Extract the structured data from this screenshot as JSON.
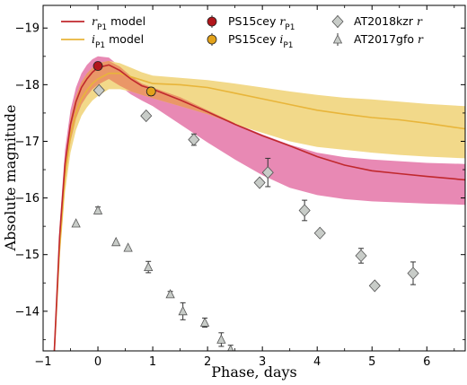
{
  "chart_data": {
    "type": "line",
    "title": "",
    "xlabel": "Phase, days",
    "ylabel": "Absolute magnitude",
    "xlim": [
      -1,
      6.7
    ],
    "ylim": [
      -13.3,
      -19.4
    ],
    "y_inverted": true,
    "xticks": [
      -1,
      0,
      1,
      2,
      3,
      4,
      5,
      6
    ],
    "yticks": [
      -14,
      -15,
      -16,
      -17,
      -18,
      -19
    ],
    "grid": false,
    "legend_placement": "top",
    "colors": {
      "r_model": "#c0282d",
      "r_band": "#e889b4",
      "i_model": "#e8b53a",
      "i_band": "#f2d98a",
      "overlap_band": "#e98f63",
      "ps15cey_r": "#b2161b",
      "ps15cey_i": "#e3a21a",
      "gray_marker": "#c8ccc8"
    },
    "series": [
      {
        "name": "r_P1 model",
        "kind": "model",
        "legend": {
          "main": "r",
          "sub": "P1",
          "suffix": " model"
        },
        "x": [
          -0.8,
          -0.7,
          -0.6,
          -0.5,
          -0.4,
          -0.3,
          -0.2,
          -0.1,
          0,
          0.2,
          0.4,
          0.6,
          0.8,
          1.0,
          1.5,
          2,
          2.5,
          3,
          3.5,
          4,
          4.5,
          5,
          5.5,
          6,
          6.7
        ],
        "y": [
          -13.2,
          -15.3,
          -16.6,
          -17.3,
          -17.7,
          -17.95,
          -18.1,
          -18.22,
          -18.3,
          -18.35,
          -18.25,
          -18.1,
          -17.98,
          -17.92,
          -17.73,
          -17.52,
          -17.3,
          -17.1,
          -16.92,
          -16.73,
          -16.58,
          -16.48,
          -16.43,
          -16.38,
          -16.32
        ],
        "band_upper": [
          -13.2,
          -15.5,
          -16.85,
          -17.55,
          -17.95,
          -18.2,
          -18.35,
          -18.45,
          -18.5,
          -18.48,
          -18.32,
          -18.15,
          -18.02,
          -17.95,
          -17.78,
          -17.55,
          -17.32,
          -17.12,
          -16.94,
          -16.8,
          -16.72,
          -16.68,
          -16.65,
          -16.62,
          -16.6
        ],
        "band_lower": [
          -13.2,
          -15.0,
          -16.3,
          -17.0,
          -17.4,
          -17.65,
          -17.8,
          -17.92,
          -18.0,
          -18.1,
          -17.98,
          -17.83,
          -17.72,
          -17.62,
          -17.3,
          -16.98,
          -16.68,
          -16.4,
          -16.18,
          -16.05,
          -15.98,
          -15.94,
          -15.92,
          -15.9,
          -15.88
        ]
      },
      {
        "name": "i_P1 model",
        "kind": "model",
        "legend": {
          "main": "i",
          "sub": "P1",
          "suffix": " model"
        },
        "x": [
          -0.8,
          -0.7,
          -0.6,
          -0.5,
          -0.4,
          -0.3,
          -0.2,
          -0.1,
          0,
          0.2,
          0.4,
          0.6,
          0.8,
          1.0,
          1.5,
          2,
          2.5,
          3,
          3.5,
          4,
          4.5,
          5,
          5.5,
          6,
          6.7
        ],
        "y": [
          -13.2,
          -15.1,
          -16.4,
          -17.1,
          -17.5,
          -17.75,
          -17.9,
          -18.02,
          -18.1,
          -18.2,
          -18.2,
          -18.14,
          -18.08,
          -18.02,
          -18.0,
          -17.95,
          -17.85,
          -17.75,
          -17.65,
          -17.55,
          -17.48,
          -17.42,
          -17.38,
          -17.32,
          -17.22
        ],
        "band_upper": [
          -13.2,
          -15.3,
          -16.65,
          -17.4,
          -17.8,
          -18.05,
          -18.2,
          -18.3,
          -18.38,
          -18.42,
          -18.38,
          -18.3,
          -18.22,
          -18.16,
          -18.12,
          -18.08,
          -18.02,
          -17.95,
          -17.88,
          -17.82,
          -17.77,
          -17.74,
          -17.7,
          -17.66,
          -17.62
        ],
        "band_lower": [
          -13.2,
          -14.9,
          -16.1,
          -16.8,
          -17.2,
          -17.45,
          -17.6,
          -17.72,
          -17.8,
          -17.92,
          -17.92,
          -17.88,
          -17.82,
          -17.76,
          -17.62,
          -17.48,
          -17.3,
          -17.15,
          -17.0,
          -16.9,
          -16.85,
          -16.8,
          -16.76,
          -16.73,
          -16.7
        ]
      },
      {
        "name": "PS15cey r_P1",
        "kind": "points",
        "marker": "circle",
        "legend": {
          "main": "PS15cey ",
          "italic": "r",
          "sub": "P1",
          "suffix": ""
        },
        "x": [
          0.0
        ],
        "y": [
          -18.33
        ],
        "err": [
          0.06
        ]
      },
      {
        "name": "PS15cey i_P1",
        "kind": "points",
        "marker": "circle",
        "legend": {
          "main": "PS15cey ",
          "italic": "i",
          "sub": "P1",
          "suffix": ""
        },
        "x": [
          0.97
        ],
        "y": [
          -17.88
        ],
        "err": [
          0.07
        ]
      },
      {
        "name": "AT2018kzr r",
        "kind": "points",
        "marker": "diamond",
        "legend": {
          "main": "AT2018kzr ",
          "italic": "r",
          "sub": "",
          "suffix": ""
        },
        "x": [
          0.02,
          0.88,
          1.75,
          2.95,
          3.1,
          3.77,
          4.05,
          4.8,
          5.05,
          5.75
        ],
        "y": [
          -17.9,
          -17.45,
          -17.03,
          -16.27,
          -16.45,
          -15.78,
          -15.38,
          -14.98,
          -14.45,
          -14.67
        ],
        "err": [
          0.0,
          0.0,
          0.1,
          0.0,
          0.25,
          0.18,
          0.0,
          0.13,
          0.0,
          0.2
        ]
      },
      {
        "name": "AT2017gfo r",
        "kind": "points",
        "marker": "triangle",
        "legend": {
          "main": "AT2017gfo ",
          "italic": "r",
          "sub": "",
          "suffix": ""
        },
        "x": [
          -0.4,
          0.0,
          0.33,
          0.55,
          0.92,
          1.32,
          1.55,
          1.95,
          2.25,
          2.42
        ],
        "y": [
          -15.55,
          -15.78,
          -15.22,
          -15.12,
          -14.78,
          -14.3,
          -14.0,
          -13.8,
          -13.5,
          -13.32
        ],
        "err": [
          0.0,
          0.06,
          0.0,
          0.0,
          0.1,
          0.05,
          0.15,
          0.08,
          0.12,
          0.08
        ]
      }
    ]
  }
}
